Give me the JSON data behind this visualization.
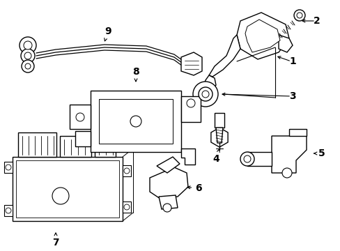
{
  "background_color": "#ffffff",
  "line_color": "#000000",
  "line_width": 1.0,
  "font_size": 10,
  "fig_width": 4.89,
  "fig_height": 3.6,
  "dpi": 100,
  "xlim": [
    0,
    489
  ],
  "ylim": [
    0,
    360
  ]
}
